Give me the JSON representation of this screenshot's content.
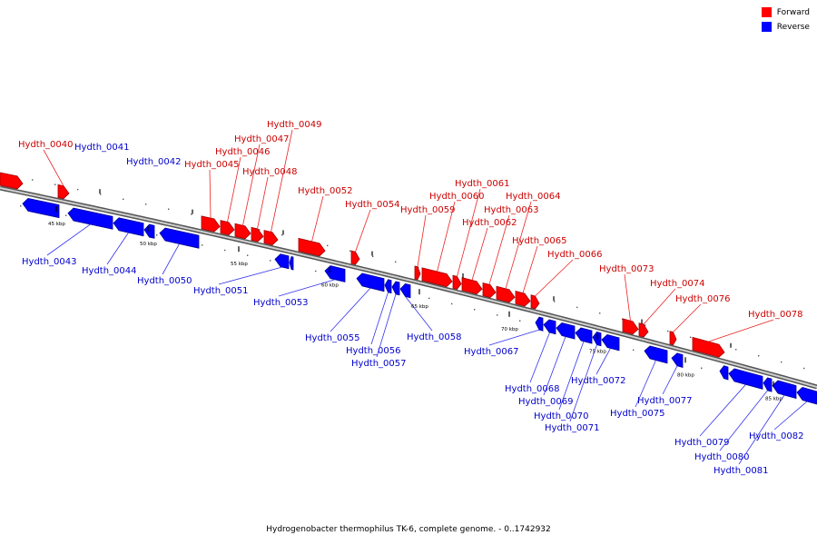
{
  "legend": {
    "forward_label": "Forward",
    "reverse_label": "Reverse",
    "forward_color": "#ff0000",
    "reverse_color": "#0000ff"
  },
  "caption": "Hydrogenobacter thermophilus TK-6, complete genome. - 0..1742932",
  "scale_labels": [
    "45 kbp",
    "50 kbp",
    "55 kbp",
    "60 kbp",
    "65 kbp",
    "70 kbp",
    "75 kbp",
    "80 kbp",
    "85 kbp"
  ],
  "genes": [
    {
      "id": "Hydth_0040",
      "strand": "forward"
    },
    {
      "id": "Hydth_0041",
      "strand": "reverse"
    },
    {
      "id": "Hydth_0042",
      "strand": "reverse"
    },
    {
      "id": "Hydth_0043",
      "strand": "reverse"
    },
    {
      "id": "Hydth_0044",
      "strand": "reverse"
    },
    {
      "id": "Hydth_0045",
      "strand": "forward"
    },
    {
      "id": "Hydth_0046",
      "strand": "forward"
    },
    {
      "id": "Hydth_0047",
      "strand": "forward"
    },
    {
      "id": "Hydth_0048",
      "strand": "forward"
    },
    {
      "id": "Hydth_0049",
      "strand": "forward"
    },
    {
      "id": "Hydth_0050",
      "strand": "reverse"
    },
    {
      "id": "Hydth_0051",
      "strand": "reverse"
    },
    {
      "id": "Hydth_0052",
      "strand": "forward"
    },
    {
      "id": "Hydth_0053",
      "strand": "reverse"
    },
    {
      "id": "Hydth_0054",
      "strand": "forward"
    },
    {
      "id": "Hydth_0055",
      "strand": "reverse"
    },
    {
      "id": "Hydth_0056",
      "strand": "reverse"
    },
    {
      "id": "Hydth_0057",
      "strand": "reverse"
    },
    {
      "id": "Hydth_0058",
      "strand": "reverse"
    },
    {
      "id": "Hydth_0059",
      "strand": "forward"
    },
    {
      "id": "Hydth_0060",
      "strand": "forward"
    },
    {
      "id": "Hydth_0061",
      "strand": "forward"
    },
    {
      "id": "Hydth_0062",
      "strand": "forward"
    },
    {
      "id": "Hydth_0063",
      "strand": "forward"
    },
    {
      "id": "Hydth_0064",
      "strand": "forward"
    },
    {
      "id": "Hydth_0065",
      "strand": "forward"
    },
    {
      "id": "Hydth_0066",
      "strand": "forward"
    },
    {
      "id": "Hydth_0067",
      "strand": "reverse"
    },
    {
      "id": "Hydth_0068",
      "strand": "reverse"
    },
    {
      "id": "Hydth_0069",
      "strand": "reverse"
    },
    {
      "id": "Hydth_0070",
      "strand": "reverse"
    },
    {
      "id": "Hydth_0071",
      "strand": "reverse"
    },
    {
      "id": "Hydth_0072",
      "strand": "reverse"
    },
    {
      "id": "Hydth_0073",
      "strand": "forward"
    },
    {
      "id": "Hydth_0074",
      "strand": "forward"
    },
    {
      "id": "Hydth_0075",
      "strand": "reverse"
    },
    {
      "id": "Hydth_0076",
      "strand": "forward"
    },
    {
      "id": "Hydth_0077",
      "strand": "reverse"
    },
    {
      "id": "Hydth_0078",
      "strand": "forward"
    },
    {
      "id": "Hydth_0079",
      "strand": "reverse"
    },
    {
      "id": "Hydth_0080",
      "strand": "reverse"
    },
    {
      "id": "Hydth_0081",
      "strand": "reverse"
    },
    {
      "id": "Hydth_0082",
      "strand": "reverse"
    }
  ]
}
